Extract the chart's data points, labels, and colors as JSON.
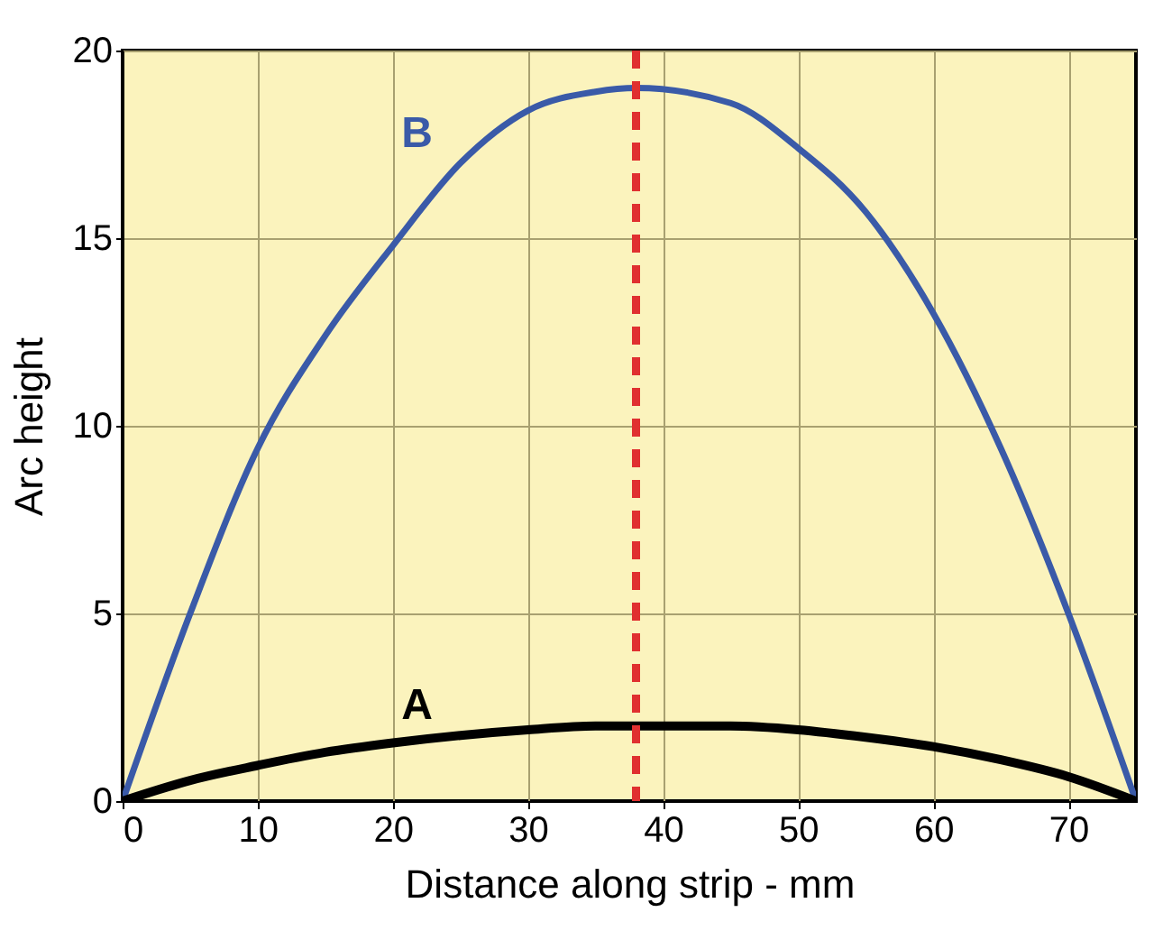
{
  "chart_data": {
    "type": "line",
    "xlabel": "Distance along strip - mm",
    "ylabel": "Arc height",
    "x": [
      0,
      5,
      10,
      15,
      20,
      25,
      30,
      35,
      38,
      45,
      50,
      55,
      60,
      65,
      70,
      75
    ],
    "series": [
      {
        "name": "B",
        "color": "#3a5aa8",
        "values": [
          0,
          5.0,
          9.4,
          12.4,
          14.8,
          17.0,
          18.4,
          18.9,
          19.0,
          18.6,
          17.4,
          15.7,
          13.0,
          9.4,
          5.0,
          0
        ]
      },
      {
        "name": "A",
        "color": "#000000",
        "values": [
          0,
          0.55,
          0.95,
          1.3,
          1.55,
          1.75,
          1.9,
          2.0,
          2.0,
          2.0,
          1.9,
          1.7,
          1.45,
          1.1,
          0.65,
          0
        ]
      }
    ],
    "ref_lines": [
      {
        "axis": "x",
        "value": 38,
        "color": "#e03030",
        "line_style": "dashed"
      }
    ],
    "xlim": [
      0,
      75
    ],
    "xticks": [
      0,
      10,
      20,
      30,
      40,
      50,
      60,
      70
    ],
    "ylim": [
      0,
      20
    ],
    "yticks": [
      0,
      5,
      10,
      15,
      20
    ],
    "grid": true,
    "marker": "none",
    "line_style": "solid"
  }
}
